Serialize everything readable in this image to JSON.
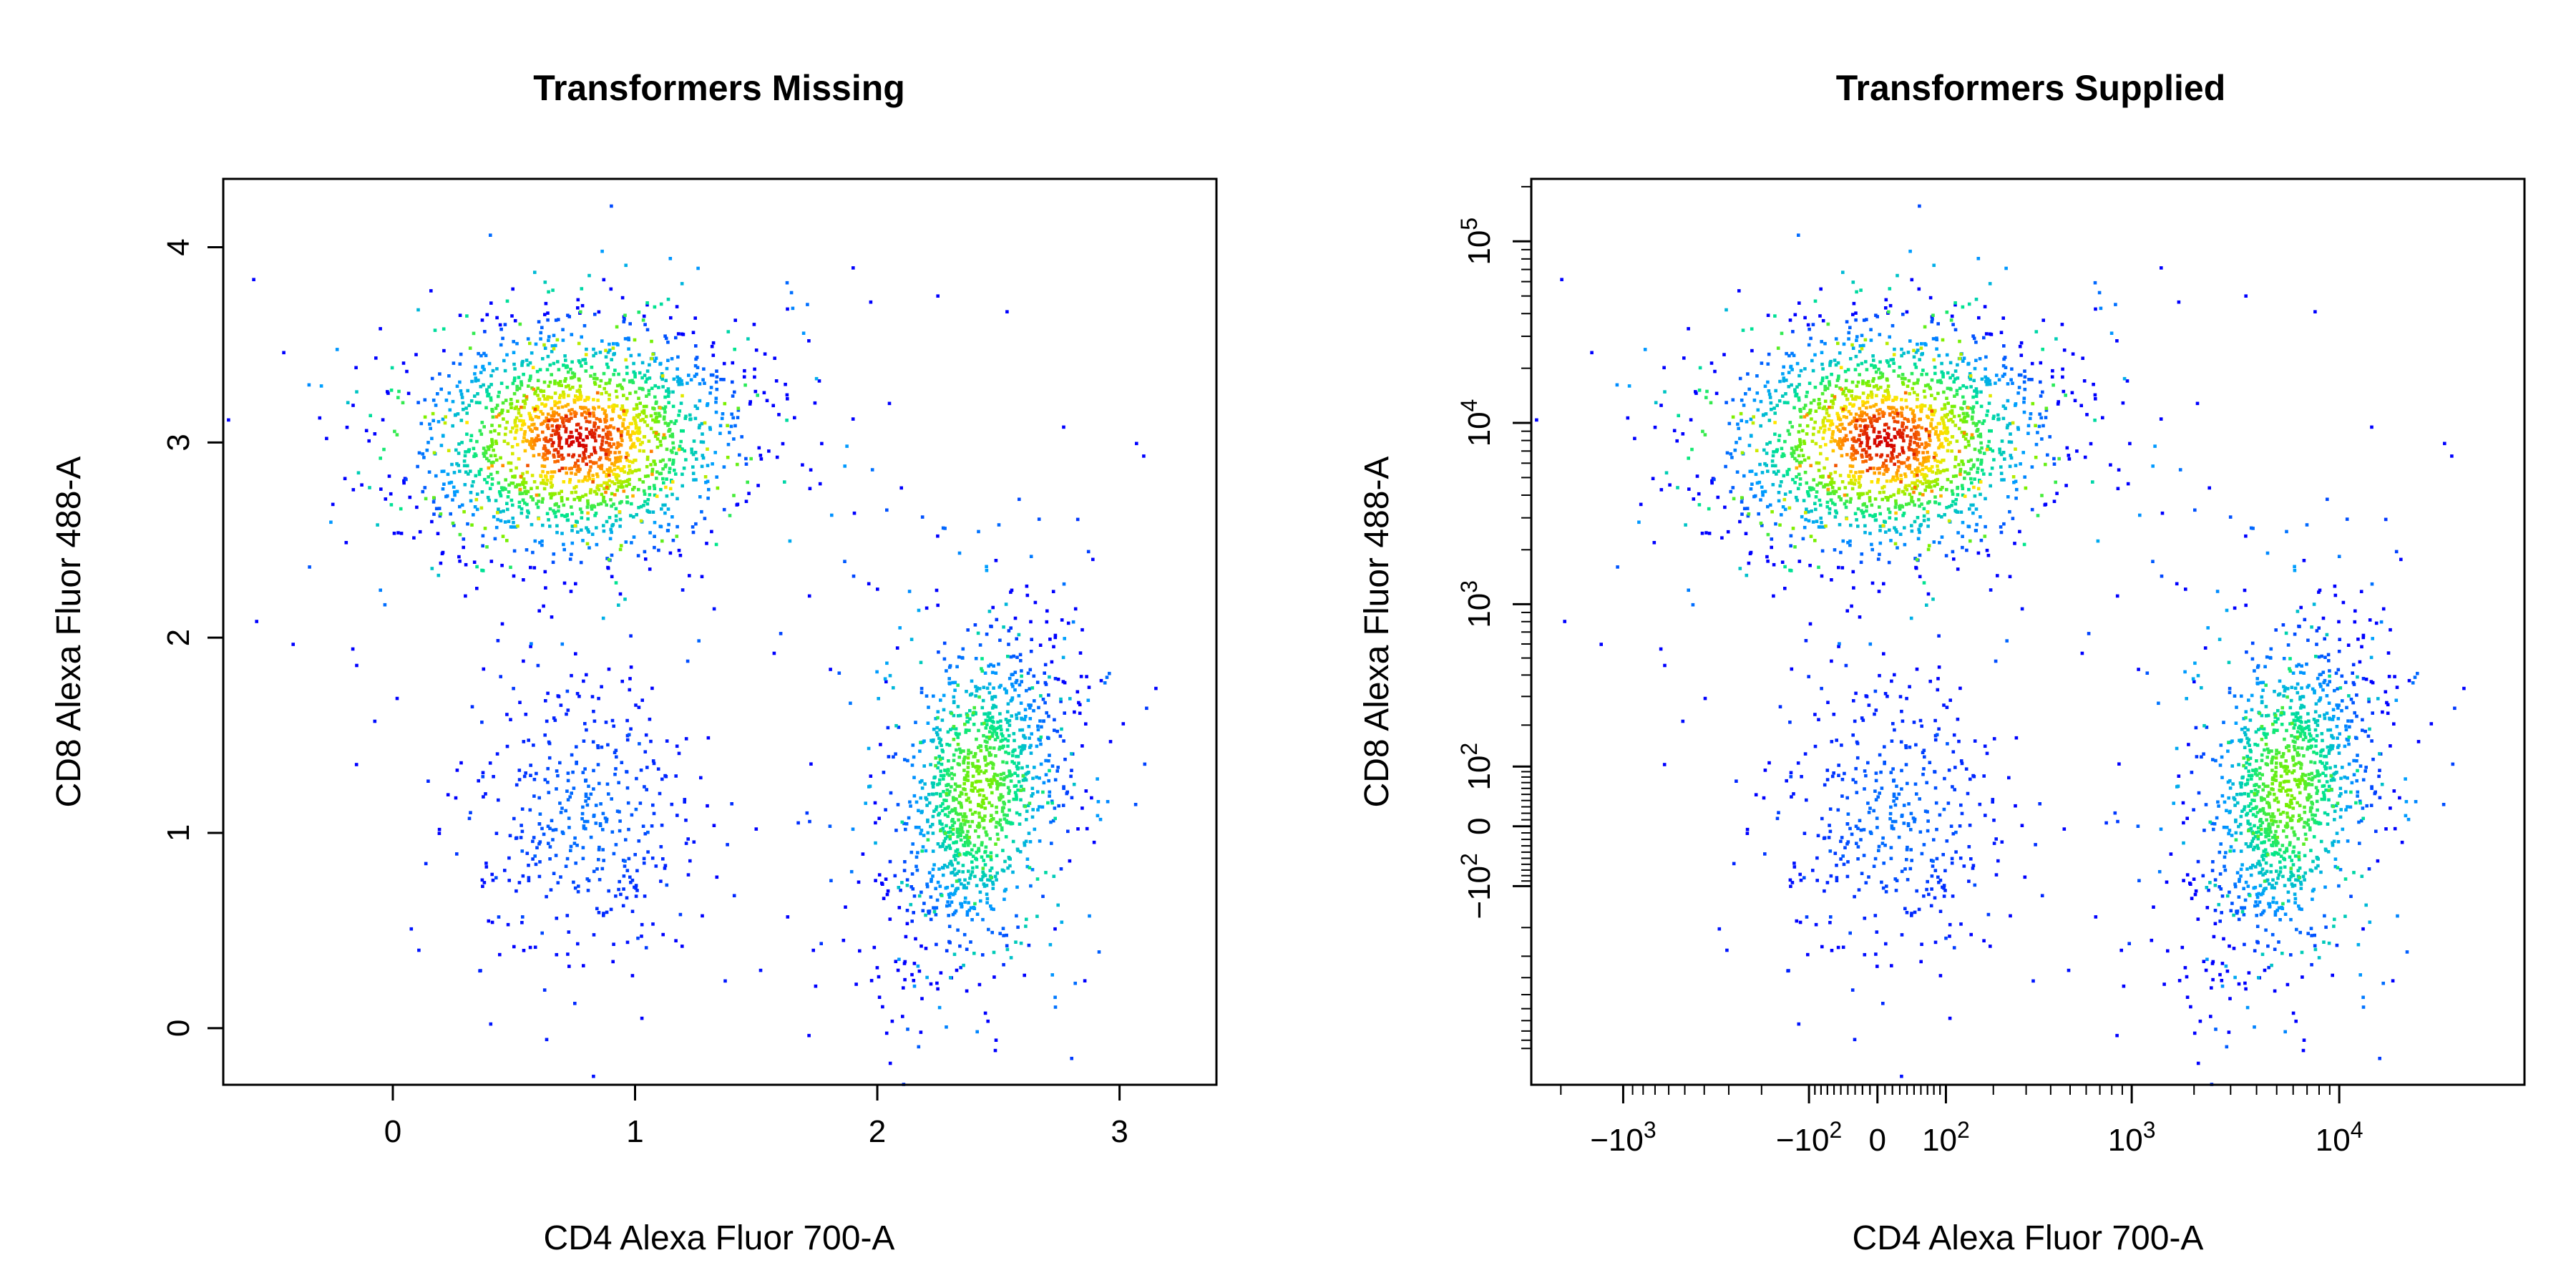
{
  "chart_data": [
    {
      "type": "scatter",
      "title": "Transformers Missing",
      "xlabel": "CD4 Alexa Fluor 700-A",
      "ylabel": "CD8 Alexa Fluor 488-A",
      "xlim": [
        -0.7,
        3.4
      ],
      "ylim": [
        -0.29,
        4.35
      ],
      "x_ticks": [
        0,
        1,
        2,
        3
      ],
      "x_tick_labels": [
        "0",
        "1",
        "2",
        "3"
      ],
      "y_ticks": [
        0,
        1,
        2,
        3,
        4
      ],
      "y_tick_labels": [
        "0",
        "1",
        "2",
        "3",
        "4"
      ],
      "color_scale": "density (blue to green to yellow to red)",
      "point_color": "#0000ff",
      "grid": false,
      "legend": "none",
      "populations": [
        {
          "cx": 0.76,
          "cy": 3.01,
          "sx": 0.33,
          "sy": 0.29,
          "n": 1900,
          "corr": 0.0
        },
        {
          "cx": 0.8,
          "cy": 1.08,
          "sx": 0.22,
          "sy": 0.33,
          "n": 420,
          "corr": 0.0
        },
        {
          "cx": 2.42,
          "cy": 1.22,
          "sx": 0.18,
          "sy": 0.42,
          "n": 1300,
          "corr": 0.35
        }
      ]
    },
    {
      "type": "scatter",
      "title": "Transformers Supplied",
      "xlabel": "CD4 Alexa Fluor 700-A",
      "ylabel": "CD8 Alexa Fluor 488-A",
      "x_scale": "biexponential",
      "y_scale": "biexponential",
      "xlim": [
        -0.7,
        3.4
      ],
      "ylim": [
        -0.29,
        4.35
      ],
      "x_ticks": [
        -1000,
        -100,
        0,
        100,
        1000,
        10000
      ],
      "x_tick_labels": [
        {
          "base": "−10",
          "exp": "3"
        },
        {
          "base": "−10",
          "exp": "2"
        },
        {
          "base": "0",
          "exp": ""
        },
        {
          "base": "10",
          "exp": "2"
        },
        {
          "base": "10",
          "exp": "3"
        },
        {
          "base": "10",
          "exp": "4"
        }
      ],
      "y_ticks": [
        -100,
        0,
        100,
        1000,
        10000,
        100000
      ],
      "y_tick_labels": [
        {
          "base": "−10",
          "exp": "2"
        },
        {
          "base": "0",
          "exp": ""
        },
        {
          "base": "10",
          "exp": "2"
        },
        {
          "base": "10",
          "exp": "3"
        },
        {
          "base": "10",
          "exp": "4"
        },
        {
          "base": "10",
          "exp": "5"
        }
      ],
      "color_scale": "density (blue to green to yellow to red)",
      "point_color": "#0000ff",
      "grid": false,
      "legend": "none",
      "populations": [
        {
          "cx": 10,
          "cy": 8000,
          "sx": "~0.33 decade",
          "sy": "~0.29 decade",
          "n": 1900,
          "corr": 0.0
        },
        {
          "cx": 20,
          "cy": 150,
          "sx": "~0.22 decade",
          "sy": "~0.33 decade",
          "n": 420,
          "corr": 0.0
        },
        {
          "cx": 2600,
          "cy": 180,
          "sx": "~0.18 decade",
          "sy": "~0.42 decade",
          "n": 1300,
          "corr": 0.35
        }
      ]
    }
  ]
}
